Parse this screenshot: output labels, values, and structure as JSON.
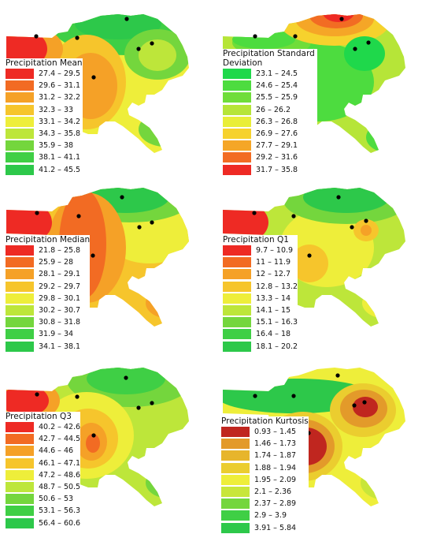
{
  "panels": [
    {
      "title": "Precipitation Mean",
      "classes": [
        {
          "range": "27.4 – 29.5",
          "color": "#ee2a24"
        },
        {
          "range": "29.6 – 31.1",
          "color": "#f26b23"
        },
        {
          "range": "31.2 – 32.2",
          "color": "#f5a127"
        },
        {
          "range": "32.3 – 33",
          "color": "#f6c52c"
        },
        {
          "range": "33.1 – 34.2",
          "color": "#eeee3a"
        },
        {
          "range": "34.3 – 35.8",
          "color": "#bde63a"
        },
        {
          "range": "35.9 – 38",
          "color": "#74d63d"
        },
        {
          "range": "38.1 – 41.1",
          "color": "#3fcf45"
        },
        {
          "range": "41.2 – 45.5",
          "color": "#2dc84a"
        }
      ]
    },
    {
      "title": "Precipitation Standard Deviation",
      "classes": [
        {
          "range": "23.1 – 24.5",
          "color": "#1fd84b"
        },
        {
          "range": "24.6 – 25.4",
          "color": "#4ddc3f"
        },
        {
          "range": "25.5 – 25.9",
          "color": "#6fdd3a"
        },
        {
          "range": "26 – 26.2",
          "color": "#b6e538"
        },
        {
          "range": "26.3 – 26.8",
          "color": "#e9ee38"
        },
        {
          "range": "26.9 – 27.6",
          "color": "#f6d22d"
        },
        {
          "range": "27.7 – 29.1",
          "color": "#f5a627"
        },
        {
          "range": "29.2 – 31.6",
          "color": "#f26c23"
        },
        {
          "range": "31.7 – 35.8",
          "color": "#ee2a24"
        }
      ]
    },
    {
      "title": "Precipitation Median",
      "classes": [
        {
          "range": "21.8 – 25.8",
          "color": "#ee2a24"
        },
        {
          "range": "25.9 – 28",
          "color": "#f26b23"
        },
        {
          "range": "28.1 – 29.1",
          "color": "#f5a127"
        },
        {
          "range": "29.2 – 29.7",
          "color": "#f6c52c"
        },
        {
          "range": "29.8 – 30.1",
          "color": "#eeee3a"
        },
        {
          "range": "30.2 – 30.7",
          "color": "#bde63a"
        },
        {
          "range": "30.8 – 31.8",
          "color": "#74d63d"
        },
        {
          "range": "31.9 – 34",
          "color": "#3fcf45"
        },
        {
          "range": "34.1 – 38.1",
          "color": "#2dc84a"
        }
      ]
    },
    {
      "title": "Precipitation Q1",
      "classes": [
        {
          "range": "9.7 – 10.9",
          "color": "#ee2a24"
        },
        {
          "range": "11 – 11.9",
          "color": "#f26b23"
        },
        {
          "range": "12 – 12.7",
          "color": "#f5a127"
        },
        {
          "range": "12.8 – 13.2",
          "color": "#f6c52c"
        },
        {
          "range": "13.3 – 14",
          "color": "#eeee3a"
        },
        {
          "range": "14.1 – 15",
          "color": "#bde63a"
        },
        {
          "range": "15.1 – 16.3",
          "color": "#74d63d"
        },
        {
          "range": "16.4 – 18",
          "color": "#3fcf45"
        },
        {
          "range": "18.1 – 20.2",
          "color": "#2dc84a"
        }
      ]
    },
    {
      "title": "Precipitation Q3",
      "classes": [
        {
          "range": "40.2 – 42.6",
          "color": "#ee2a24"
        },
        {
          "range": "42.7 – 44.5",
          "color": "#f26b23"
        },
        {
          "range": "44.6 – 46",
          "color": "#f5a127"
        },
        {
          "range": "46.1 – 47.1",
          "color": "#f6c52c"
        },
        {
          "range": "47.2 – 48.6",
          "color": "#eeee3a"
        },
        {
          "range": "48.7 – 50.5",
          "color": "#bde63a"
        },
        {
          "range": "50.6 – 53",
          "color": "#74d63d"
        },
        {
          "range": "53.1 – 56.3",
          "color": "#3fcf45"
        },
        {
          "range": "56.4 – 60.6",
          "color": "#2dc84a"
        }
      ]
    },
    {
      "title": "Precipitation Kurtosis",
      "classes": [
        {
          "range": "0.93 – 1.45",
          "color": "#c0261f"
        },
        {
          "range": "1.46 – 1.73",
          "color": "#e39a2a"
        },
        {
          "range": "1.74 – 1.87",
          "color": "#e7b52c"
        },
        {
          "range": "1.88 – 1.94",
          "color": "#ebcd2f"
        },
        {
          "range": "1.95 – 2.09",
          "color": "#eeee3a"
        },
        {
          "range": "2.1 – 2.36",
          "color": "#c8e63a"
        },
        {
          "range": "2.37 – 2.89",
          "color": "#74d63d"
        },
        {
          "range": "2.9 – 3.9",
          "color": "#3fcf45"
        },
        {
          "range": "3.91 – 5.84",
          "color": "#2dc84a"
        }
      ]
    }
  ]
}
